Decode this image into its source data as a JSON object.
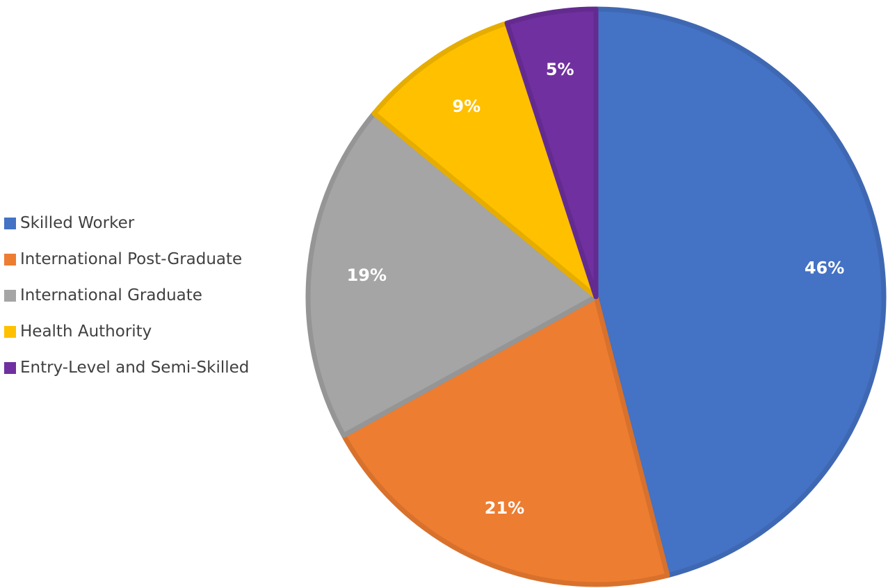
{
  "chart_data": {
    "type": "pie",
    "title": "",
    "legend_position": "left",
    "start_angle_deg": 0,
    "direction": "clockwise",
    "slices": [
      {
        "name": "Skilled Worker",
        "value": 46,
        "label": "46%",
        "color": "#4472C4",
        "stroke": "#3F68B3"
      },
      {
        "name": "International Post-Graduate",
        "value": 21,
        "label": "21%",
        "color": "#ED7D31",
        "stroke": "#D8712C"
      },
      {
        "name": "International Graduate",
        "value": 19,
        "label": "19%",
        "color": "#A5A5A5",
        "stroke": "#959595"
      },
      {
        "name": "Health Authority",
        "value": 9,
        "label": "9%",
        "color": "#FFC000",
        "stroke": "#E6AD00"
      },
      {
        "name": "Entry-Level and Semi-Skilled",
        "value": 5,
        "label": "5%",
        "color": "#7030A0",
        "stroke": "#632B8F"
      }
    ]
  }
}
